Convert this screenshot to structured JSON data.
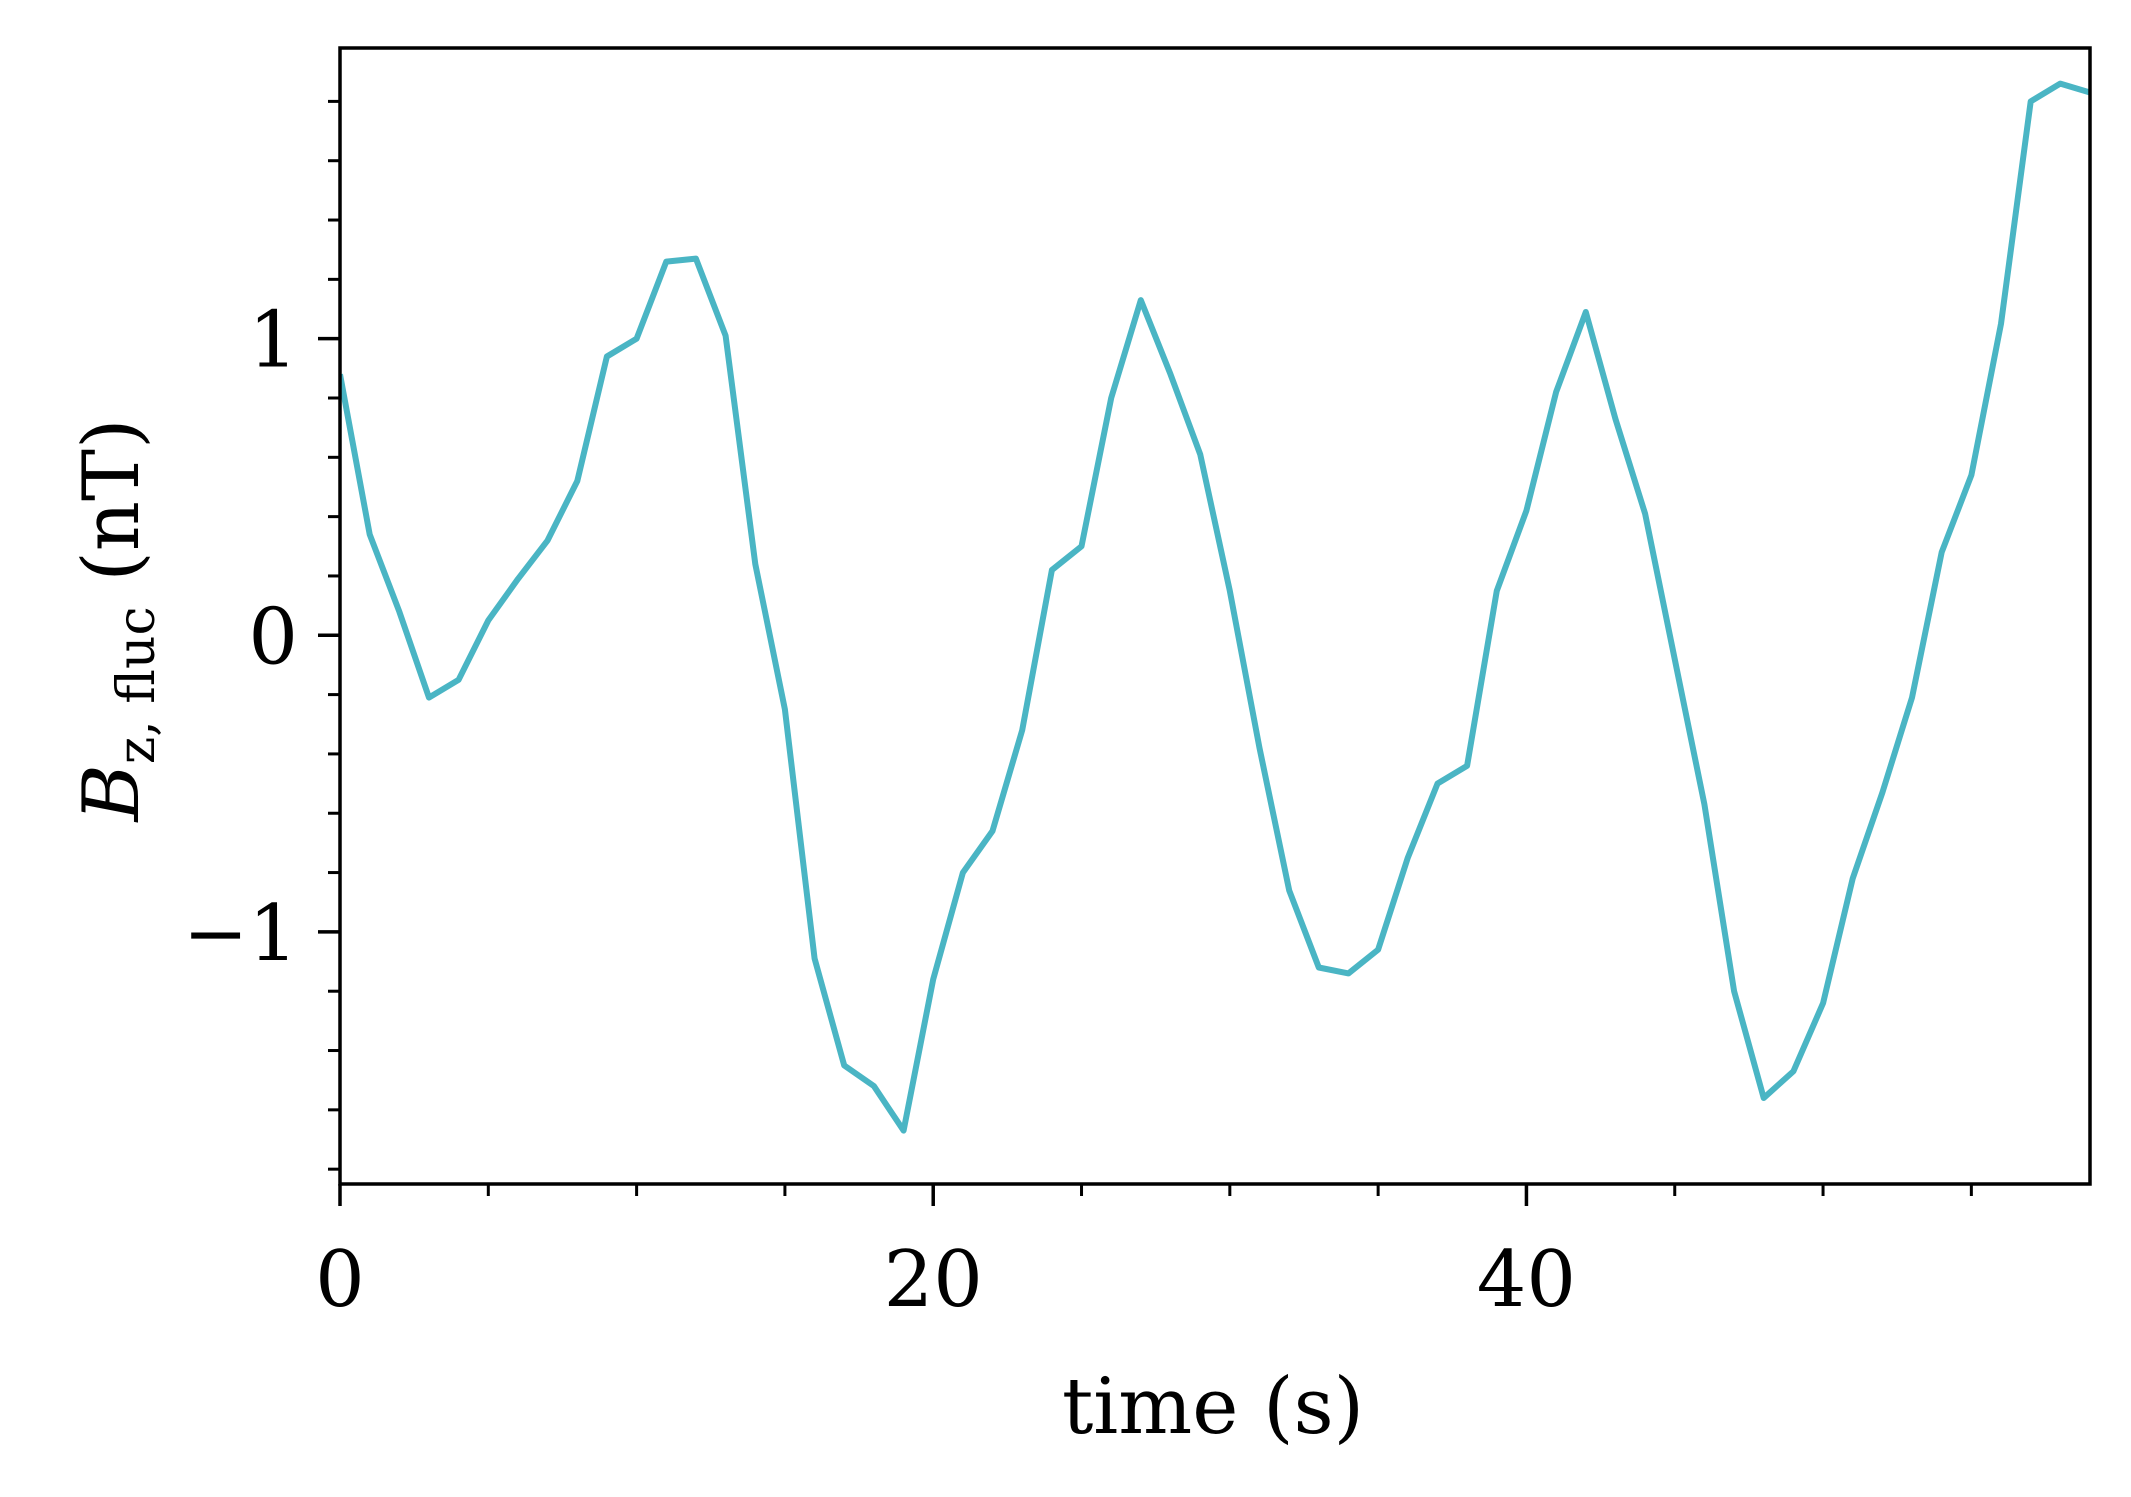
{
  "chart_data": {
    "type": "line",
    "xlabel": "time (s)",
    "ylabel": {
      "symbol": "B",
      "subscript": "z, fluc",
      "unit": "(nT)"
    },
    "xlim": [
      0,
      59
    ],
    "ylim": [
      -1.85,
      1.98
    ],
    "x_ticks": [
      0,
      20,
      40
    ],
    "x_tick_labels": [
      "0",
      "20",
      "40"
    ],
    "x_minor_step": 5,
    "y_ticks": [
      -1,
      0,
      1
    ],
    "y_tick_labels": [
      "−1",
      "0",
      "1"
    ],
    "y_minor_step": 0.2,
    "grid": false,
    "line_color": "#4ab5c4",
    "series": [
      {
        "x": [
          0,
          1,
          2,
          3,
          4,
          5,
          6,
          7,
          8,
          9,
          10,
          11,
          12,
          13,
          14,
          15,
          16,
          17,
          18,
          19,
          20,
          21,
          22,
          23,
          24,
          25,
          26,
          27,
          28,
          29,
          30,
          31,
          32,
          33,
          34,
          35,
          36,
          37,
          38,
          39,
          40,
          41,
          42,
          43,
          44,
          45,
          46,
          47,
          48,
          49,
          50,
          51,
          52,
          53,
          54,
          55,
          56,
          57,
          58,
          59
        ],
        "y": [
          0.88,
          0.34,
          0.08,
          -0.21,
          -0.15,
          0.05,
          0.19,
          0.32,
          0.52,
          0.94,
          1.0,
          1.26,
          1.27,
          1.01,
          0.24,
          -0.25,
          -1.09,
          -1.45,
          -1.52,
          -1.67,
          -1.16,
          -0.8,
          -0.66,
          -0.32,
          0.22,
          0.3,
          0.8,
          1.13,
          0.88,
          0.61,
          0.15,
          -0.38,
          -0.86,
          -1.12,
          -1.14,
          -1.06,
          -0.75,
          -0.5,
          -0.44,
          0.15,
          0.42,
          0.82,
          1.09,
          0.73,
          0.41,
          -0.08,
          -0.57,
          -1.2,
          -1.56,
          -1.47,
          -1.24,
          -0.82,
          -0.53,
          -0.21,
          0.28,
          0.54,
          1.05,
          1.8,
          1.86,
          1.83
        ]
      }
    ]
  }
}
